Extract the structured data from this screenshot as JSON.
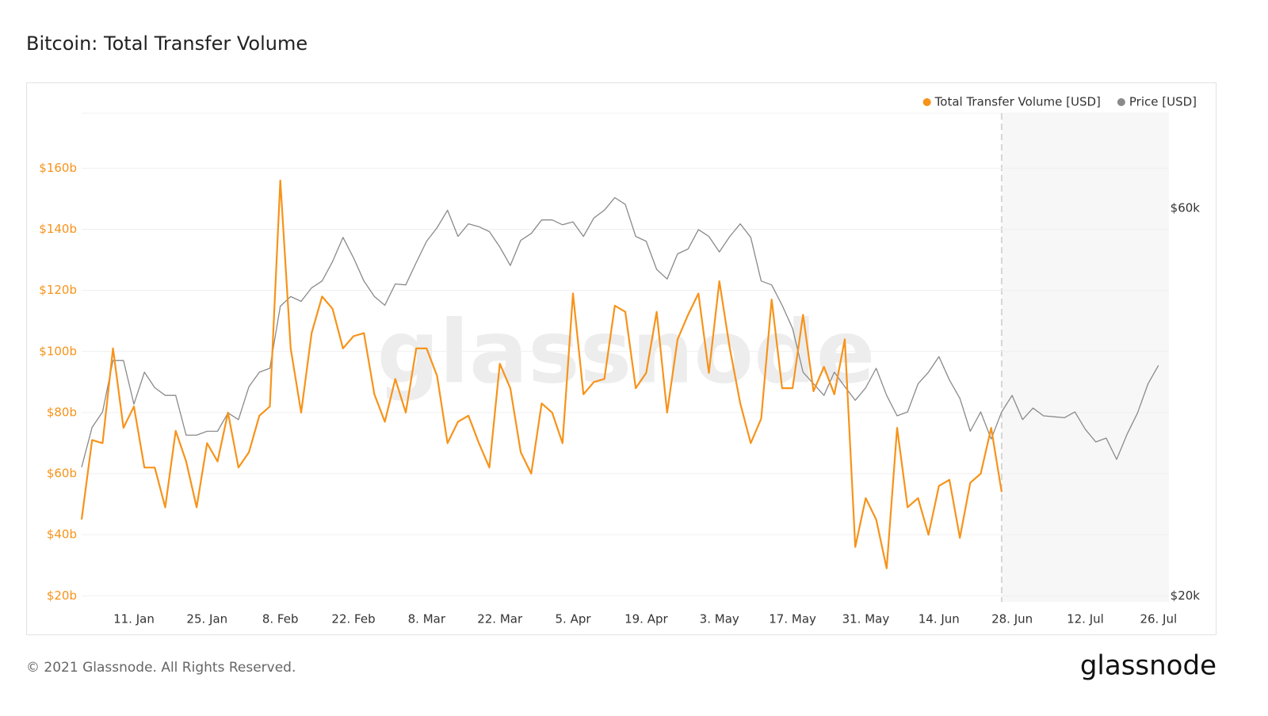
{
  "chart_data": {
    "type": "line",
    "title": "Bitcoin: Total Transfer Volume",
    "watermark": "glassnode",
    "x": [
      "1. Jan",
      "3. Jan",
      "5. Jan",
      "7. Jan",
      "9. Jan",
      "11. Jan",
      "13. Jan",
      "15. Jan",
      "17. Jan",
      "19. Jan",
      "21. Jan",
      "23. Jan",
      "25. Jan",
      "27. Jan",
      "29. Jan",
      "31. Jan",
      "2. Feb",
      "4. Feb",
      "6. Feb",
      "8. Feb",
      "10. Feb",
      "12. Feb",
      "14. Feb",
      "16. Feb",
      "18. Feb",
      "20. Feb",
      "22. Feb",
      "24. Feb",
      "26. Feb",
      "28. Feb",
      "2. Mar",
      "4. Mar",
      "6. Mar",
      "8. Mar",
      "10. Mar",
      "12. Mar",
      "14. Mar",
      "16. Mar",
      "18. Mar",
      "20. Mar",
      "22. Mar",
      "24. Mar",
      "26. Mar",
      "28. Mar",
      "30. Mar",
      "1. Apr",
      "3. Apr",
      "5. Apr",
      "7. Apr",
      "9. Apr",
      "11. Apr",
      "13. Apr",
      "15. Apr",
      "17. Apr",
      "19. Apr",
      "21. Apr",
      "23. Apr",
      "25. Apr",
      "27. Apr",
      "29. Apr",
      "1. May",
      "3. May",
      "5. May",
      "7. May",
      "9. May",
      "11. May",
      "13. May",
      "15. May",
      "17. May",
      "19. May",
      "21. May",
      "23. May",
      "25. May",
      "27. May",
      "29. May",
      "31. May",
      "2. Jun",
      "4. Jun",
      "6. Jun",
      "8. Jun",
      "10. Jun",
      "12. Jun",
      "14. Jun",
      "16. Jun",
      "18. Jun",
      "20. Jun",
      "22. Jun",
      "24. Jun",
      "26. Jun",
      "28. Jun",
      "30. Jun",
      "2. Jul",
      "4. Jul",
      "6. Jul",
      "8. Jul",
      "10. Jul",
      "12. Jul",
      "14. Jul",
      "16. Jul",
      "18. Jul",
      "20. Jul",
      "22. Jul",
      "24. Jul",
      "26. Jul",
      "28. Jul"
    ],
    "xticks": [
      "11. Jan",
      "25. Jan",
      "8. Feb",
      "22. Feb",
      "8. Mar",
      "22. Mar",
      "5. Apr",
      "19. Apr",
      "3. May",
      "17. May",
      "31. May",
      "14. Jun",
      "28. Jun",
      "12. Jul",
      "26. Jul"
    ],
    "ylim": [
      18,
      178
    ],
    "yticks": [
      {
        "value": 20,
        "label": "$20b"
      },
      {
        "value": 40,
        "label": "$40b"
      },
      {
        "value": 60,
        "label": "$60b"
      },
      {
        "value": 80,
        "label": "$80b"
      },
      {
        "value": 100,
        "label": "$100b"
      },
      {
        "value": 120,
        "label": "$120b"
      },
      {
        "value": 140,
        "label": "$140b"
      },
      {
        "value": 160,
        "label": "$160b"
      }
    ],
    "y2lim": [
      19.4,
      69.8
    ],
    "y2ticks": [
      {
        "value": 20,
        "label": "$20k"
      },
      {
        "value": 60,
        "label": "$60k"
      }
    ],
    "grid": true,
    "legend": "top-right",
    "series": [
      {
        "name": "Total Transfer Volume [USD]",
        "color": "#f7931a",
        "values": [
          45,
          71,
          70,
          101,
          75,
          82,
          62,
          62,
          49,
          74,
          64,
          49,
          70,
          64,
          80,
          62,
          67,
          79,
          82,
          156,
          101,
          80,
          106,
          118,
          114,
          101,
          105,
          106,
          86,
          77,
          91,
          80,
          101,
          101,
          92,
          70,
          77,
          79,
          70,
          62,
          96,
          88,
          67,
          60,
          83,
          80,
          70,
          119,
          86,
          90,
          91,
          115,
          113,
          88,
          93,
          113,
          80,
          104,
          112,
          119,
          93,
          123,
          101,
          83,
          70,
          78,
          117,
          88,
          88,
          112,
          87,
          95,
          86,
          104,
          36,
          52,
          45,
          29,
          75,
          49,
          52,
          40,
          56,
          58,
          39,
          57,
          60,
          75,
          54,
          null,
          null,
          null,
          null,
          null,
          null,
          null,
          null,
          null,
          null,
          null,
          null,
          null,
          null,
          null,
          null
        ]
      },
      {
        "name": "Price [USD]",
        "color": "#8a8a8a",
        "axis": "y2",
        "values": [
          33.3,
          37.4,
          39.0,
          44.3,
          44.3,
          39.8,
          43.1,
          41.5,
          40.7,
          40.7,
          36.6,
          36.6,
          37.0,
          37.0,
          38.9,
          38.2,
          41.6,
          43.1,
          43.5,
          49.9,
          50.9,
          50.4,
          51.8,
          52.5,
          54.5,
          57.0,
          54.9,
          52.5,
          50.9,
          50.0,
          52.2,
          52.1,
          54.4,
          56.6,
          58.0,
          59.8,
          57.1,
          58.4,
          58.1,
          57.6,
          56.0,
          54.1,
          56.7,
          57.4,
          58.8,
          58.8,
          58.3,
          58.6,
          57.1,
          59.0,
          59.8,
          61.1,
          60.4,
          57.1,
          56.6,
          53.7,
          52.7,
          55.3,
          55.8,
          57.8,
          57.1,
          55.5,
          57.1,
          58.4,
          57.0,
          52.5,
          52.1,
          50.0,
          47.6,
          43.1,
          41.9,
          40.7,
          43.1,
          41.6,
          40.2,
          41.5,
          43.5,
          40.7,
          38.6,
          39.0,
          41.9,
          43.1,
          44.7,
          42.3,
          40.4,
          37.0,
          39.0,
          36.2,
          39.0,
          40.7,
          38.2,
          39.4,
          38.6,
          38.5,
          38.4,
          39.0,
          37.2,
          35.9,
          36.3,
          34.1,
          36.7,
          38.9,
          41.9,
          43.8,
          null
        ]
      }
    ]
  },
  "footer": "© 2021 Glassnode. All Rights Reserved.",
  "logo": "glassnode"
}
